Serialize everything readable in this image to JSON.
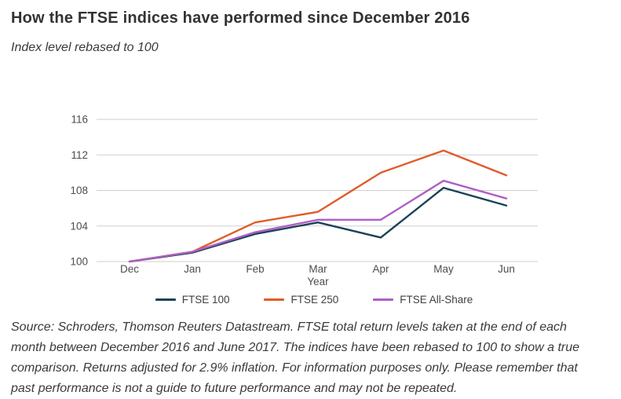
{
  "header": {
    "title": "How the FTSE indices have performed since December 2016",
    "subtitle": "Index level rebased to 100"
  },
  "footer": {
    "source_text": "Source: Schroders, Thomson Reuters Datastream. FTSE total return levels taken at the end of each month between December 2016 and June 2017. The indices have been rebased to 100 to show a true comparison. Returns adjusted for 2.9% inflation. For information purposes only. Please remember that past performance is not a guide to future performance and may not be repeated."
  },
  "colors": {
    "grid": "#cfcfcf",
    "axis_text": "#4d4d4d"
  },
  "chart_data": {
    "type": "line",
    "title": "How the FTSE indices have performed since December 2016",
    "subtitle": "Index level rebased to 100",
    "xlabel": "Year",
    "ylabel": "",
    "categories": [
      "Dec",
      "Jan",
      "Feb",
      "Mar",
      "Apr",
      "May",
      "Jun"
    ],
    "yticks": [
      100,
      104,
      108,
      112,
      116
    ],
    "ylim": [
      100,
      116
    ],
    "grid": true,
    "legend_position": "bottom",
    "series": [
      {
        "name": "FTSE 100",
        "color": "#1b4257",
        "values": [
          100,
          101.0,
          103.1,
          104.4,
          102.7,
          108.3,
          106.3
        ]
      },
      {
        "name": "FTSE 250",
        "color": "#e05c2b",
        "values": [
          100,
          101.1,
          104.4,
          105.6,
          110.0,
          112.5,
          109.7
        ]
      },
      {
        "name": "FTSE All-Share",
        "color": "#af5fc4",
        "values": [
          100,
          101.1,
          103.3,
          104.7,
          104.7,
          109.1,
          107.1
        ]
      }
    ]
  }
}
